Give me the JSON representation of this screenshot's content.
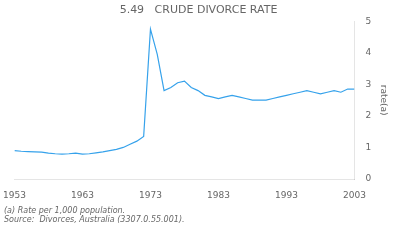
{
  "chart_data": {
    "type": "line",
    "title": "5.49   CRUDE DIVORCE RATE",
    "ylabel": "rate(a)",
    "annotations": [
      "(a) Rate per 1,000 population.",
      "Source:  Divorces, Australia (3307.0.55.001)."
    ],
    "x": [
      1953,
      1954,
      1955,
      1956,
      1957,
      1958,
      1959,
      1960,
      1961,
      1962,
      1963,
      1964,
      1965,
      1966,
      1967,
      1968,
      1969,
      1970,
      1971,
      1972,
      1973,
      1974,
      1975,
      1976,
      1977,
      1978,
      1979,
      1980,
      1981,
      1982,
      1983,
      1984,
      1985,
      1986,
      1987,
      1988,
      1989,
      1990,
      1991,
      1992,
      1993,
      1994,
      1995,
      1996,
      1997,
      1998,
      1999,
      2000,
      2001,
      2002,
      2003
    ],
    "values": [
      0.9,
      0.88,
      0.87,
      0.86,
      0.85,
      0.82,
      0.8,
      0.79,
      0.8,
      0.82,
      0.79,
      0.8,
      0.83,
      0.86,
      0.9,
      0.94,
      1.0,
      1.1,
      1.2,
      1.35,
      4.75,
      3.95,
      2.8,
      2.9,
      3.05,
      3.1,
      2.9,
      2.8,
      2.65,
      2.6,
      2.55,
      2.6,
      2.65,
      2.6,
      2.55,
      2.5,
      2.5,
      2.5,
      2.55,
      2.6,
      2.65,
      2.7,
      2.75,
      2.8,
      2.75,
      2.7,
      2.75,
      2.8,
      2.75,
      2.85,
      2.85
    ],
    "xlim": [
      1953,
      2003
    ],
    "ylim": [
      0,
      5
    ],
    "xticks": [
      1953,
      1963,
      1973,
      1983,
      1993,
      2003
    ],
    "yticks": [
      0,
      1,
      2,
      3,
      4,
      5
    ],
    "grid": false
  }
}
